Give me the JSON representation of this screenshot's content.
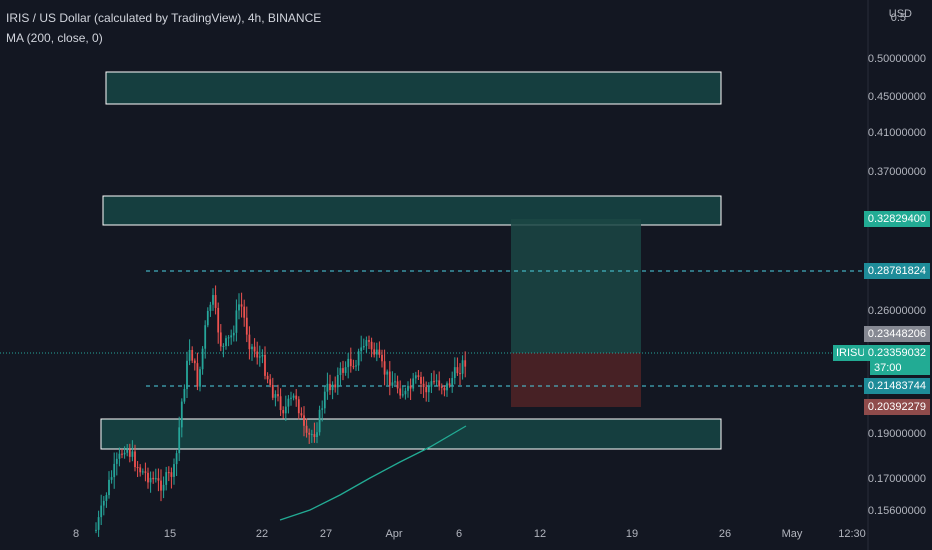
{
  "legend": {
    "title": "IRIS / US Dollar (calculated by TradingView), 4h, BINANCE",
    "indicator": "MA (200, close, 0)"
  },
  "axis": {
    "currency": "USD",
    "price_ticks": [
      "0.5",
      "0.50000000",
      "0.45000000",
      "0.41000000",
      "0.37000000",
      "0.26000000",
      "0.19000000",
      "0.17000000",
      "0.15600000"
    ],
    "date_ticks": [
      "8",
      "15",
      "22",
      "27",
      "Apr",
      "6",
      "12",
      "19",
      "26",
      "May",
      "12:30"
    ]
  },
  "price_tags": {
    "target": "0.32829400",
    "resistance": "0.28781824",
    "high": "0.23448206",
    "symbol": "IRISUSD",
    "last": "0.23359032",
    "countdown": "37:00",
    "support": "0.21483744",
    "stop": "0.20392279"
  },
  "colors": {
    "background": "#131722",
    "up": "#26a69a",
    "down": "#ef5350",
    "zone_fill": "#174c4a",
    "target_tag": "#22ab94",
    "stop_tag": "#8f4b4b",
    "high_tag": "#868993",
    "dashed": "#4dd0e1"
  },
  "chart_data": {
    "type": "candlestick",
    "symbol": "IRIS / US Dollar",
    "interval": "4h",
    "exchange": "BINANCE",
    "horizontal_levels": [
      0.28781824,
      0.21483744
    ],
    "zones": [
      [
        0.44,
        0.47
      ],
      [
        0.31,
        0.33
      ],
      [
        0.185,
        0.195
      ]
    ],
    "long_position": {
      "entry": 0.23359032,
      "target": 0.328294,
      "stop": 0.20392279
    },
    "last_price": 0.23359032
  }
}
